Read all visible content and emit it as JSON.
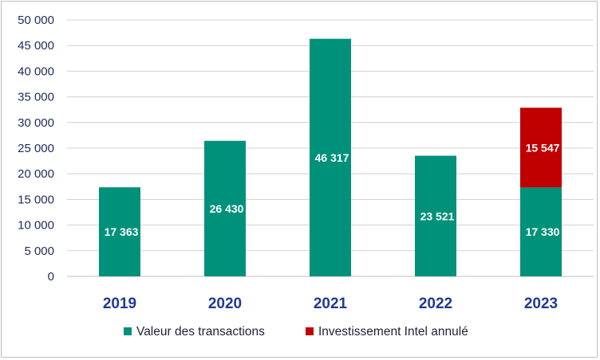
{
  "chart_data": {
    "type": "bar",
    "stacked": true,
    "categories": [
      "2019",
      "2020",
      "2021",
      "2022",
      "2023"
    ],
    "series": [
      {
        "name": "Valeur des transactions",
        "color": "#00917a",
        "values": [
          17363,
          26430,
          46317,
          23521,
          17330
        ],
        "labels": [
          "17 363",
          "26 430",
          "46 317",
          "23 521",
          "17 330"
        ]
      },
      {
        "name": "Investissement Intel annulé",
        "color": "#c00000",
        "values": [
          0,
          0,
          0,
          0,
          15547
        ],
        "labels": [
          "",
          "",
          "",
          "",
          "15 547"
        ]
      }
    ],
    "ylim": [
      0,
      50000
    ],
    "yticks": [
      0,
      5000,
      10000,
      15000,
      20000,
      25000,
      30000,
      35000,
      40000,
      45000,
      50000
    ],
    "ytick_labels": [
      "0",
      "5 000",
      "10 000",
      "15 000",
      "20 000",
      "25 000",
      "30 000",
      "35 000",
      "40 000",
      "45 000",
      "50 000"
    ],
    "grid": true,
    "legend_position": "bottom"
  }
}
